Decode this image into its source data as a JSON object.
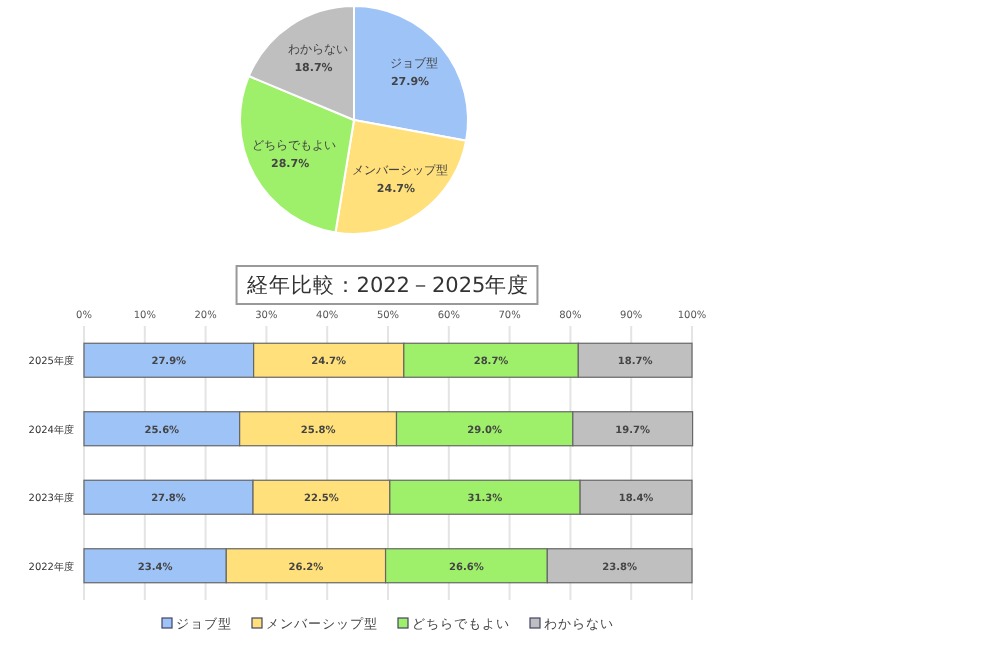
{
  "chart_data": [
    {
      "type": "pie",
      "categories": [
        "ジョブ型",
        "メンバーシップ型",
        "どちらでもよい",
        "わからない"
      ],
      "values": [
        27.9,
        24.7,
        28.7,
        18.7
      ],
      "colors": [
        "#9dc3f7",
        "#ffe07a",
        "#9ef06a",
        "#bfbfbf"
      ],
      "value_labels": [
        "27.9%",
        "24.7%",
        "28.7%",
        "18.7%"
      ]
    },
    {
      "type": "bar",
      "orientation": "horizontal",
      "stacked": true,
      "title": "経年比較：2022－2025年度",
      "categories": [
        "2025年度",
        "2024年度",
        "2023年度",
        "2022年度"
      ],
      "series": [
        {
          "name": "ジョブ型",
          "color": "#9dc3f7",
          "values": [
            27.9,
            25.6,
            27.8,
            23.4
          ],
          "value_labels": [
            "27.9%",
            "25.6%",
            "27.8%",
            "23.4%"
          ]
        },
        {
          "name": "メンバーシップ型",
          "color": "#ffe07a",
          "values": [
            24.7,
            25.8,
            22.5,
            26.2
          ],
          "value_labels": [
            "24.7%",
            "25.8%",
            "22.5%",
            "26.2%"
          ]
        },
        {
          "name": "どちらでもよい",
          "color": "#9ef06a",
          "values": [
            28.7,
            29.0,
            31.3,
            26.6
          ],
          "value_labels": [
            "28.7%",
            "29.0%",
            "31.3%",
            "26.6%"
          ]
        },
        {
          "name": "わからない",
          "color": "#bfbfbf",
          "values": [
            18.7,
            19.7,
            18.4,
            23.8
          ],
          "value_labels": [
            "18.7%",
            "19.7%",
            "18.4%",
            "23.8%"
          ]
        }
      ],
      "xlim": [
        0,
        100
      ],
      "xticks": [
        {
          "value": 0,
          "label": "0%"
        },
        {
          "value": 10,
          "label": "10%"
        },
        {
          "value": 20,
          "label": "20%"
        },
        {
          "value": 30,
          "label": "30%"
        },
        {
          "value": 40,
          "label": "40%"
        },
        {
          "value": 50,
          "label": "50%"
        },
        {
          "value": 60,
          "label": "60%"
        },
        {
          "value": 70,
          "label": "70%"
        },
        {
          "value": 80,
          "label": "80%"
        },
        {
          "value": 90,
          "label": "90%"
        },
        {
          "value": 100,
          "label": "100%"
        }
      ],
      "grid": "x",
      "legend": "bottom"
    }
  ]
}
